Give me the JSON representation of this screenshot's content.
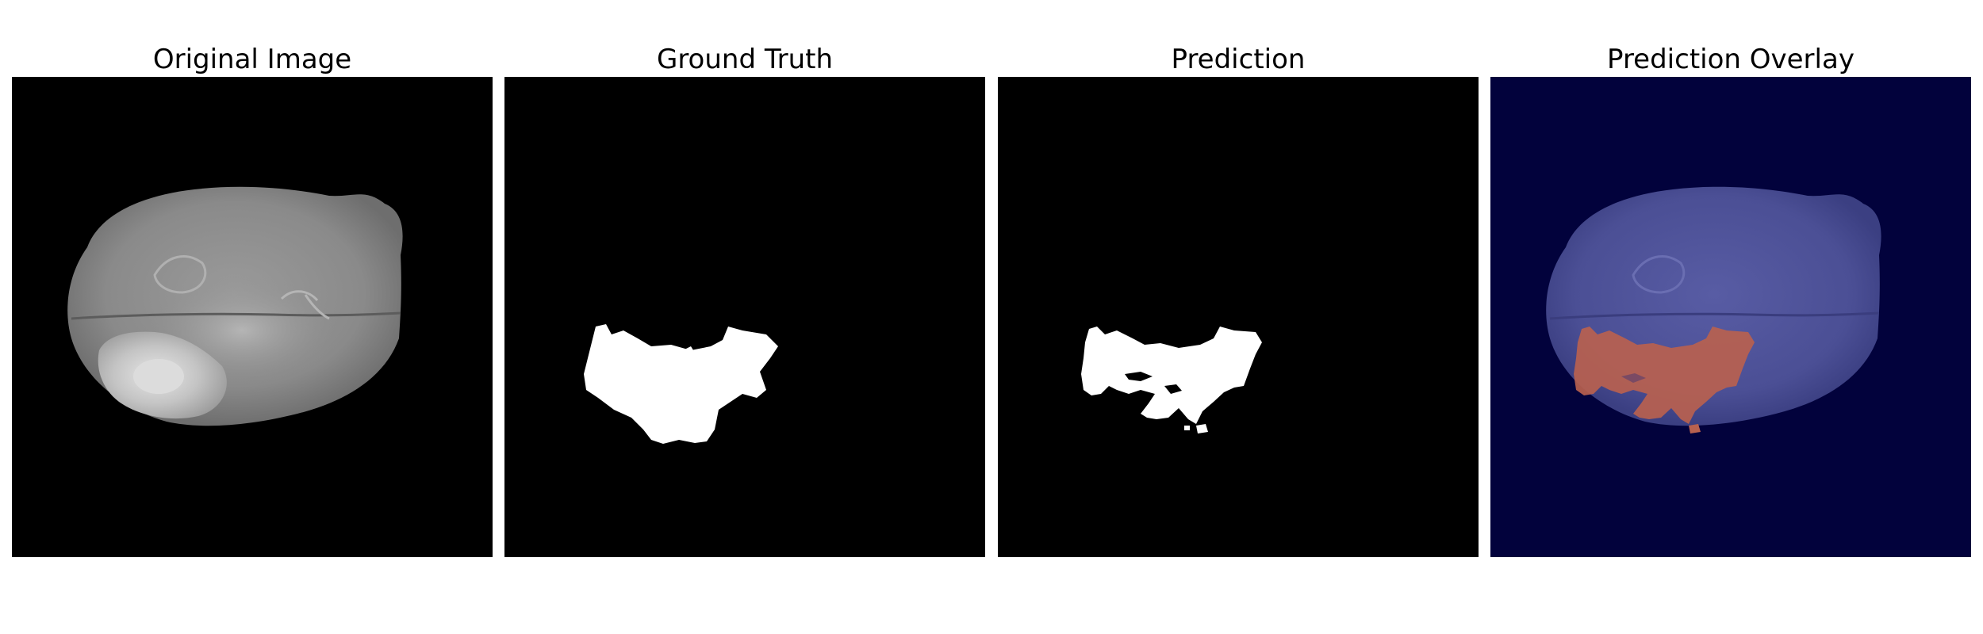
{
  "panels": [
    {
      "title": "Original Image"
    },
    {
      "title": "Ground Truth"
    },
    {
      "title": "Prediction"
    },
    {
      "title": "Prediction Overlay"
    }
  ],
  "colors": {
    "background": "#ffffff",
    "mask_background": "#000000",
    "mask_foreground": "#ffffff",
    "overlay_background": "#02023c",
    "overlay_brain": "#4b4f95",
    "overlay_tumor": "#b8614f"
  }
}
